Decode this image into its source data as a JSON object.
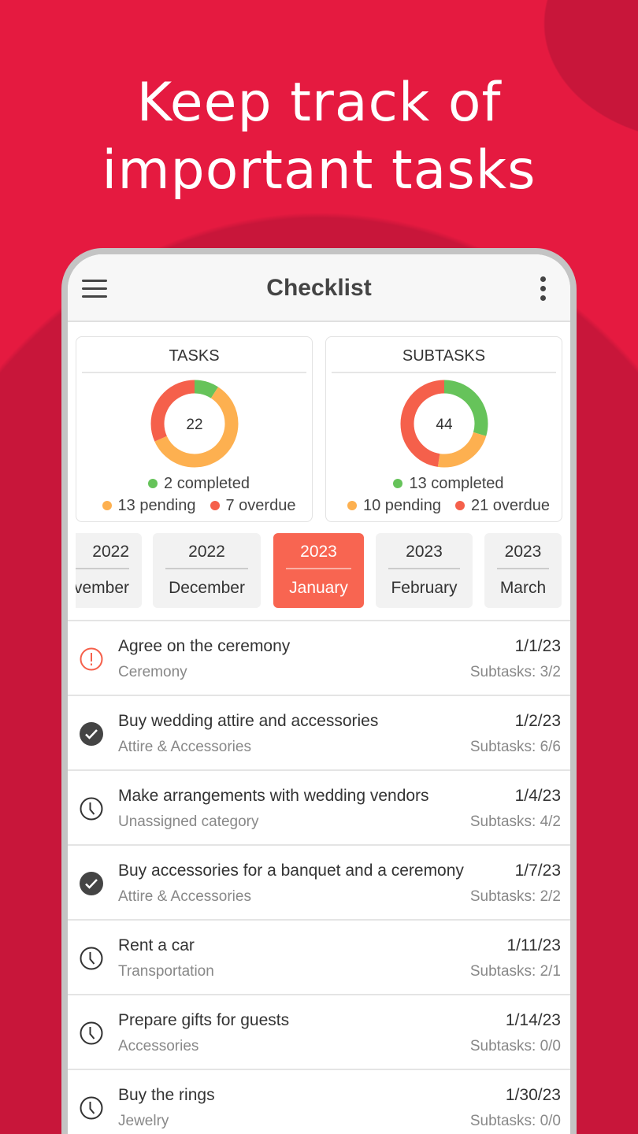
{
  "headline": [
    "Keep track of",
    "important tasks"
  ],
  "colors": {
    "background": "#e51a40",
    "accent": "#f86551",
    "completed": "#66c35a",
    "pending": "#fdb050",
    "overdue": "#f5604b"
  },
  "appbar": {
    "title": "Checklist",
    "menu_icon": "hamburger-icon",
    "more_icon": "more-vertical-icon"
  },
  "summary": [
    {
      "title": "TASKS",
      "total": "22",
      "completed": 2,
      "pending": 13,
      "overdue": 7,
      "completed_label": "2 completed",
      "pending_label": "13 pending",
      "overdue_label": "7 overdue"
    },
    {
      "title": "SUBTASKS",
      "total": "44",
      "completed": 13,
      "pending": 10,
      "overdue": 21,
      "completed_label": "13 completed",
      "pending_label": "10 pending",
      "overdue_label": "21 overdue"
    }
  ],
  "months": [
    {
      "year": "2022",
      "month": "November",
      "selected": false
    },
    {
      "year": "2022",
      "month": "December",
      "selected": false
    },
    {
      "year": "2023",
      "month": "January",
      "selected": true
    },
    {
      "year": "2023",
      "month": "February",
      "selected": false
    },
    {
      "year": "2023",
      "month": "March",
      "selected": false
    }
  ],
  "tasks": [
    {
      "title": "Agree on the ceremony",
      "category": "Ceremony",
      "date": "1/1/23",
      "subtasks": "Subtasks: 3/2",
      "status": "overdue"
    },
    {
      "title": "Buy wedding attire and accessories",
      "category": "Attire & Accessories",
      "date": "1/2/23",
      "subtasks": "Subtasks: 6/6",
      "status": "completed"
    },
    {
      "title": "Make arrangements with wedding vendors",
      "category": "Unassigned category",
      "date": "1/4/23",
      "subtasks": "Subtasks: 4/2",
      "status": "pending"
    },
    {
      "title": "Buy accessories for a banquet and a ceremony",
      "category": "Attire & Accessories",
      "date": "1/7/23",
      "subtasks": "Subtasks: 2/2",
      "status": "completed"
    },
    {
      "title": "Rent a car",
      "category": "Transportation",
      "date": "1/11/23",
      "subtasks": "Subtasks: 2/1",
      "status": "pending"
    },
    {
      "title": "Prepare gifts for guests",
      "category": "Accessories",
      "date": "1/14/23",
      "subtasks": "Subtasks: 0/0",
      "status": "pending"
    },
    {
      "title": "Buy the rings",
      "category": "Jewelry",
      "date": "1/30/23",
      "subtasks": "Subtasks: 0/0",
      "status": "pending"
    }
  ]
}
